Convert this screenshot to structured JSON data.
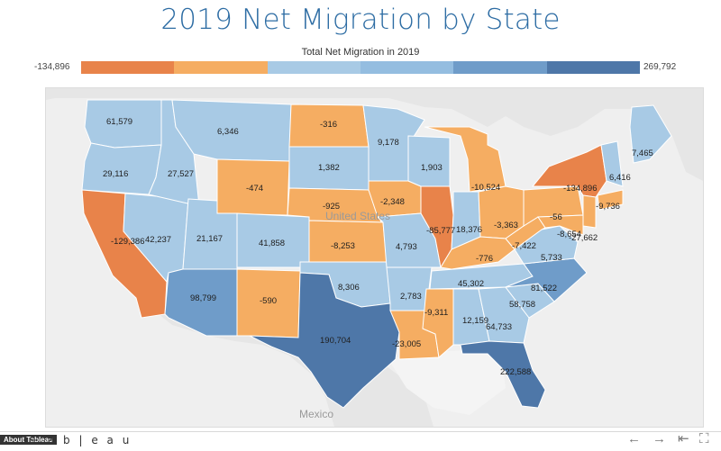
{
  "title": "2019 Net Migration by State",
  "legend": {
    "title": "Total Net Migration in 2019",
    "min": "-134,896",
    "max": "269,792",
    "colors": [
      "#e8834a",
      "#f5ad62",
      "#a8cae5",
      "#94bde0",
      "#6f9cc9",
      "#4e77a8"
    ]
  },
  "map_labels": {
    "country": "United States",
    "mexico": "Mexico"
  },
  "footer": {
    "about": "About Tableau",
    "brand": "+ a b | e a u"
  },
  "chart_data": {
    "type": "map",
    "title": "2019 Net Migration by State",
    "measure": "Total Net Migration in 2019",
    "range": [
      -134896,
      269792
    ],
    "states": [
      {
        "state": "WA",
        "value": 61579
      },
      {
        "state": "OR",
        "value": 29116
      },
      {
        "state": "CA",
        "value": -129386
      },
      {
        "state": "NV",
        "value": 42237
      },
      {
        "state": "ID",
        "value": 27527
      },
      {
        "state": "MT",
        "value": 6346
      },
      {
        "state": "WY",
        "value": -474
      },
      {
        "state": "UT",
        "value": 21167
      },
      {
        "state": "CO",
        "value": 41858
      },
      {
        "state": "AZ",
        "value": 98799
      },
      {
        "state": "NM",
        "value": -590
      },
      {
        "state": "ND",
        "value": -316
      },
      {
        "state": "SD",
        "value": 1382
      },
      {
        "state": "NE",
        "value": -925
      },
      {
        "state": "KS",
        "value": -8253
      },
      {
        "state": "OK",
        "value": 8306
      },
      {
        "state": "TX",
        "value": 190704
      },
      {
        "state": "MN",
        "value": 9178
      },
      {
        "state": "IA",
        "value": -2348
      },
      {
        "state": "MO",
        "value": 4793
      },
      {
        "state": "AR",
        "value": 2783
      },
      {
        "state": "LA",
        "value": -23005
      },
      {
        "state": "WI",
        "value": 1903
      },
      {
        "state": "IL",
        "value": -85777
      },
      {
        "state": "MI",
        "value": -10524
      },
      {
        "state": "IN",
        "value": 18376
      },
      {
        "state": "OH",
        "value": -3363
      },
      {
        "state": "KY",
        "value": -776
      },
      {
        "state": "TN",
        "value": 45302
      },
      {
        "state": "MS",
        "value": -9311
      },
      {
        "state": "AL",
        "value": 12159
      },
      {
        "state": "GA",
        "value": 64733
      },
      {
        "state": "FL",
        "value": 222588
      },
      {
        "state": "SC",
        "value": 58758
      },
      {
        "state": "NC",
        "value": 81522
      },
      {
        "state": "VA",
        "value": 5733
      },
      {
        "state": "WV",
        "value": -7422
      },
      {
        "state": "PA",
        "value": -56
      },
      {
        "state": "NY",
        "value": -134896
      },
      {
        "state": "NJ",
        "value": -27662
      },
      {
        "state": "MD",
        "value": -8654
      },
      {
        "state": "CT",
        "value": -9736
      },
      {
        "state": "VT",
        "value": 6416
      },
      {
        "state": "ME",
        "value": 7465
      }
    ]
  }
}
